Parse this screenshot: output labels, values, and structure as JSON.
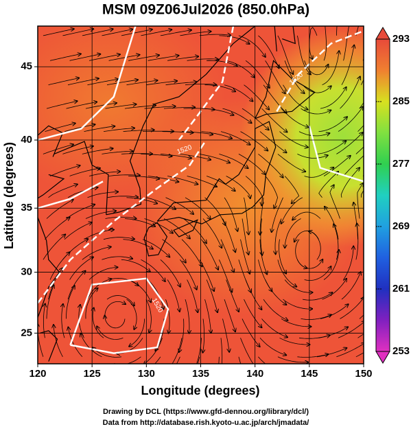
{
  "title": "MSM 09Z06Jul2026 (850.0hPa)",
  "x_axis": {
    "label": "Longitude (degrees)",
    "lim": [
      120,
      150
    ],
    "ticks": [
      120,
      125,
      130,
      135,
      140,
      145,
      150
    ]
  },
  "y_axis": {
    "label": "Latitude  (degrees)",
    "lim": [
      22.4,
      47.6
    ],
    "ticks": [
      25,
      30,
      35,
      40,
      45
    ]
  },
  "colorbar": {
    "lim": [
      253,
      293
    ],
    "ticks": [
      253,
      261,
      269,
      277,
      285,
      293
    ]
  },
  "contour_labels": [
    "1520",
    "1520",
    "1520"
  ],
  "footer": [
    "Drawing by DCL (https://www.gfd-dennou.org/library/dcl/)",
    "Data from http://database.rish.kyoto-u.ac.jp/arch/jmadata/"
  ]
}
